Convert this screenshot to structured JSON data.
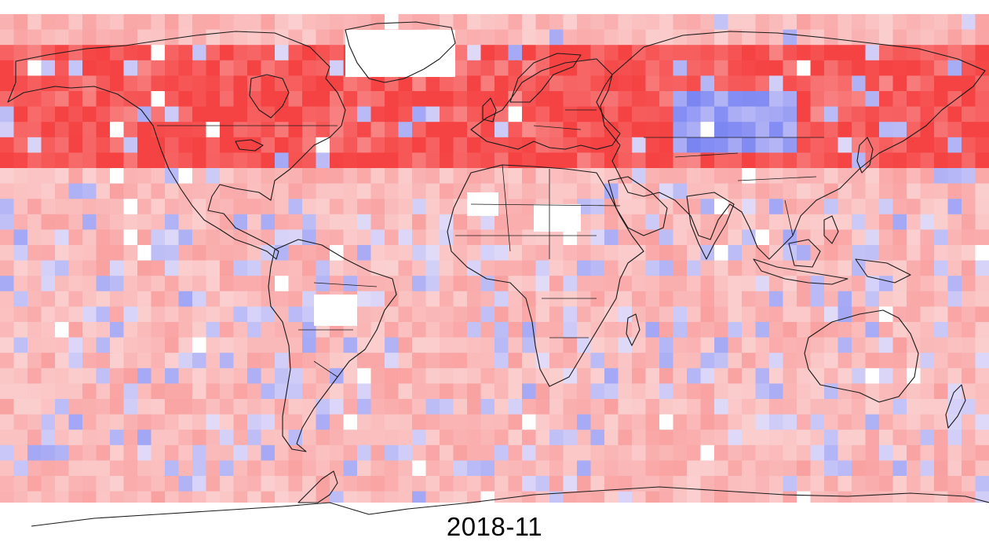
{
  "map": {
    "date_label": "2018-11",
    "colors": {
      "warm_max": "#f53a3a",
      "cool_max": "#5a6af0",
      "neutral": "#fbe6e6",
      "missing": "#ffffff",
      "coastline": "#1a1a1a"
    },
    "projection": "equirectangular",
    "grid_cell_degrees": 5,
    "legend": "none"
  }
}
